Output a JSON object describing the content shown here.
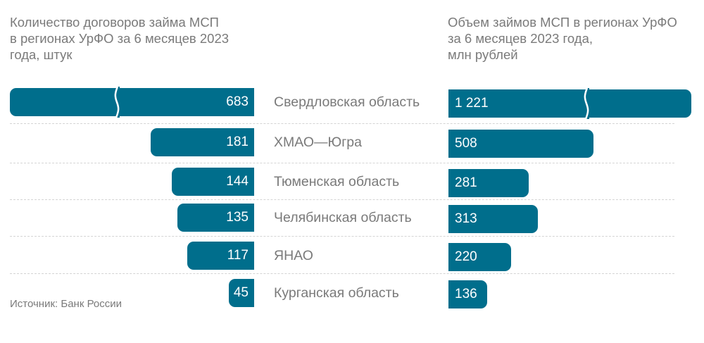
{
  "chart_data": {
    "type": "bar",
    "layout": "butterfly",
    "categories": [
      "Свердловская область",
      "ХМАО—Югра",
      "Тюменская область",
      "Челябинская область",
      "ЯНАО",
      "Курганская область"
    ],
    "series": [
      {
        "name": "Количество договоров займа МСП в регионах УрФО за 6 месяцев 2023 года, штук",
        "side": "left",
        "values": [
          683,
          181,
          144,
          135,
          117,
          45
        ],
        "labels": [
          "683",
          "181",
          "144",
          "135",
          "117",
          "45"
        ],
        "broken": [
          true,
          false,
          false,
          false,
          false,
          false
        ]
      },
      {
        "name": "Объем займов МСП в регионах УрФО за 6 месяцев 2023 года, млн рублей",
        "side": "right",
        "values": [
          1221,
          508,
          281,
          313,
          220,
          136
        ],
        "labels": [
          "1 221",
          "508",
          "281",
          "313",
          "220",
          "136"
        ],
        "broken": [
          true,
          false,
          false,
          false,
          false,
          false
        ]
      }
    ],
    "color": "#006e8c"
  },
  "titles": {
    "left": "Количество договоров займа МСП\nв регионах УрФО за 6 месяцев 2023\nгода, штук",
    "right": "Объем займов МСП в регионах УрФО\nза 6 месяцев 2023 года,\nмлн рублей"
  },
  "source": "Источник: Банк России"
}
